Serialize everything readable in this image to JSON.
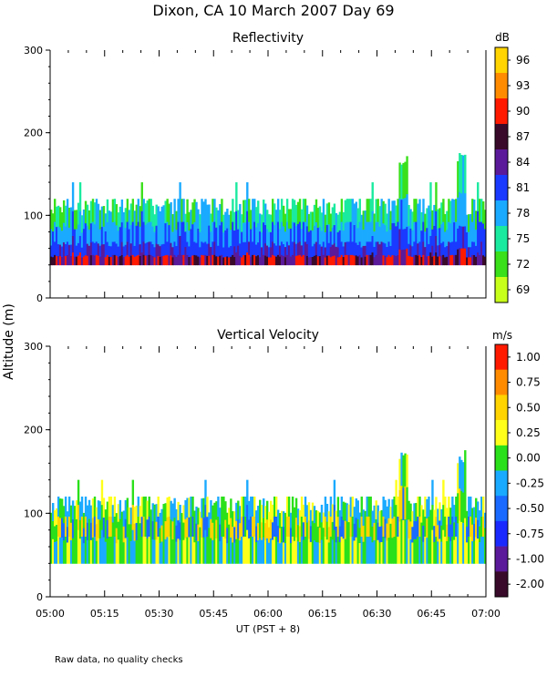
{
  "title": "Dixon, CA  10 March 2007   Day  69",
  "shared_ylabel": "Altitude (m)",
  "footer": "Raw data, no quality checks",
  "chart_data": [
    {
      "type": "heatmap",
      "title": "Reflectivity",
      "colorbar_unit": "dB",
      "colorbar_labels": [
        "96",
        "93",
        "90",
        "87",
        "84",
        "81",
        "78",
        "75",
        "72",
        "69"
      ],
      "colorbar_colors": [
        "#ffd400",
        "#ff8c00",
        "#ff1a00",
        "#3a0a2a",
        "#5a1a9a",
        "#1a3aff",
        "#1aaaff",
        "#1aeaa0",
        "#3ae01a",
        "#c8ff1a"
      ],
      "yticks": [
        0,
        100,
        200,
        300
      ],
      "ylim": [
        0,
        300
      ],
      "xlabel": "",
      "xticks": [],
      "xlim_minutes": [
        0,
        120
      ],
      "profile_top_m": 120,
      "profile_base_m": 40,
      "notes": "Dense echoes 40-120 m throughout; peaks up to ~180 m near 06:37 and 06:53"
    },
    {
      "type": "heatmap",
      "title": "Vertical Velocity",
      "colorbar_unit": "m/s",
      "colorbar_labels": [
        "1.00",
        "0.75",
        "0.50",
        "0.25",
        "0.00",
        "-0.25",
        "-0.50",
        "-0.75",
        "-1.00",
        "-2.00"
      ],
      "colorbar_colors": [
        "#ff1a00",
        "#ff8c00",
        "#ffd400",
        "#ffff1a",
        "#2ae01a",
        "#1aaaff",
        "#1a6aff",
        "#1a2aff",
        "#5a1a9a",
        "#3a0a2a"
      ],
      "yticks": [
        0,
        100,
        200,
        300
      ],
      "ylim": [
        0,
        300
      ],
      "xlabel": "UT  (PST + 8)",
      "xticks": [
        "05:00",
        "05:15",
        "05:30",
        "05:45",
        "06:00",
        "06:15",
        "06:30",
        "06:45",
        "07:00"
      ],
      "xlim_minutes": [
        0,
        120
      ],
      "profile_top_m": 120,
      "profile_base_m": 40,
      "notes": "Mostly 0 to 0.5 m/s with scattered negative columns; spikes near 06:37 and 06:53"
    }
  ]
}
